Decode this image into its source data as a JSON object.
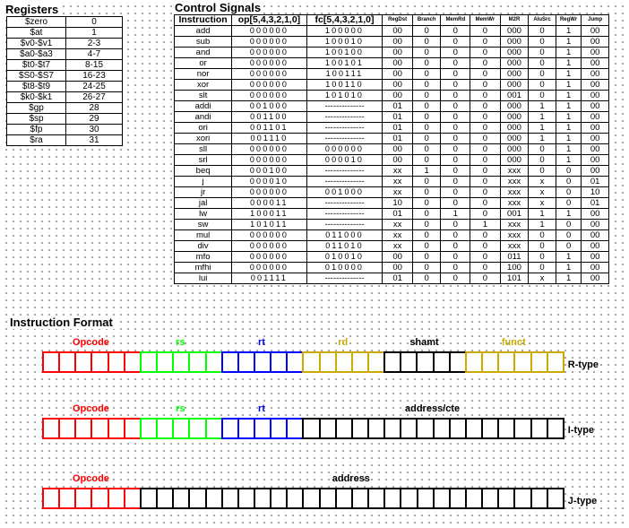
{
  "registers": {
    "title": "Registers",
    "rows": [
      [
        "$zero",
        "0"
      ],
      [
        "$at",
        "1"
      ],
      [
        "$v0-$v1",
        "2-3"
      ],
      [
        "$a0-$a3",
        "4-7"
      ],
      [
        "$t0-$t7",
        "8-15"
      ],
      [
        "$S0-$S7",
        "16-23"
      ],
      [
        "$t8-$t9",
        "24-25"
      ],
      [
        "$k0-$k1",
        "26-27"
      ],
      [
        "$gp",
        "28"
      ],
      [
        "$sp",
        "29"
      ],
      [
        "$fp",
        "30"
      ],
      [
        "$ra",
        "31"
      ]
    ]
  },
  "control_signals": {
    "title": "Control Signals",
    "headers": [
      "Instruction",
      "op[5,4,3,2,1,0]",
      "fc[5,4,3,2,1,0]",
      "RegDst",
      "Branch",
      "MemRd",
      "MemWr",
      "M2R",
      "AluSrc",
      "RegWr",
      "Jump"
    ],
    "rows": [
      [
        "add",
        "000000",
        "100000",
        "00",
        "0",
        "0",
        "0",
        "000",
        "0",
        "1",
        "00"
      ],
      [
        "sub",
        "000000",
        "100010",
        "00",
        "0",
        "0",
        "0",
        "000",
        "0",
        "1",
        "00"
      ],
      [
        "and",
        "000000",
        "100100",
        "00",
        "0",
        "0",
        "0",
        "000",
        "0",
        "1",
        "00"
      ],
      [
        "or",
        "000000",
        "100101",
        "00",
        "0",
        "0",
        "0",
        "000",
        "0",
        "1",
        "00"
      ],
      [
        "nor",
        "000000",
        "100111",
        "00",
        "0",
        "0",
        "0",
        "000",
        "0",
        "1",
        "00"
      ],
      [
        "xor",
        "000000",
        "100110",
        "00",
        "0",
        "0",
        "0",
        "000",
        "0",
        "1",
        "00"
      ],
      [
        "slt",
        "000000",
        "101010",
        "00",
        "0",
        "0",
        "0",
        "001",
        "0",
        "1",
        "00"
      ],
      [
        "addi",
        "001000",
        "--------------",
        "01",
        "0",
        "0",
        "0",
        "000",
        "1",
        "1",
        "00"
      ],
      [
        "andi",
        "001100",
        "--------------",
        "01",
        "0",
        "0",
        "0",
        "000",
        "1",
        "1",
        "00"
      ],
      [
        "ori",
        "001101",
        "--------------",
        "01",
        "0",
        "0",
        "0",
        "000",
        "1",
        "1",
        "00"
      ],
      [
        "xori",
        "001110",
        "--------------",
        "01",
        "0",
        "0",
        "0",
        "000",
        "1",
        "1",
        "00"
      ],
      [
        "sll",
        "000000",
        "000000",
        "00",
        "0",
        "0",
        "0",
        "000",
        "0",
        "1",
        "00"
      ],
      [
        "srl",
        "000000",
        "000010",
        "00",
        "0",
        "0",
        "0",
        "000",
        "0",
        "1",
        "00"
      ],
      [
        "beq",
        "000100",
        "--------------",
        "xx",
        "1",
        "0",
        "0",
        "xxx",
        "0",
        "0",
        "00"
      ],
      [
        "j",
        "000010",
        "--------------",
        "xx",
        "0",
        "0",
        "0",
        "xxx",
        "x",
        "0",
        "01"
      ],
      [
        "jr",
        "000000",
        "001000",
        "xx",
        "0",
        "0",
        "0",
        "xxx",
        "x",
        "0",
        "10"
      ],
      [
        "jal",
        "000011",
        "--------------",
        "10",
        "0",
        "0",
        "0",
        "xxx",
        "x",
        "0",
        "01"
      ],
      [
        "lw",
        "100011",
        "--------------",
        "01",
        "0",
        "1",
        "0",
        "001",
        "1",
        "1",
        "00"
      ],
      [
        "sw",
        "101011",
        "--------------",
        "xx",
        "0",
        "0",
        "1",
        "xxx",
        "1",
        "0",
        "00"
      ],
      [
        "mul",
        "000000",
        "011000",
        "xx",
        "0",
        "0",
        "0",
        "xxx",
        "0",
        "0",
        "00"
      ],
      [
        "div",
        "000000",
        "011010",
        "xx",
        "0",
        "0",
        "0",
        "xxx",
        "0",
        "0",
        "00"
      ],
      [
        "mfo",
        "000000",
        "010010",
        "00",
        "0",
        "0",
        "0",
        "011",
        "0",
        "1",
        "00"
      ],
      [
        "mfhi",
        "000000",
        "010000",
        "00",
        "0",
        "0",
        "0",
        "100",
        "0",
        "1",
        "00"
      ],
      [
        "lui",
        "001111",
        "--------------",
        "01",
        "0",
        "0",
        "0",
        "101",
        "x",
        "1",
        "00"
      ]
    ]
  },
  "instruction_format": {
    "title": "Instruction Format",
    "formats": [
      {
        "type_label": "R-type",
        "fields": [
          {
            "label": "Opcode",
            "bits": 6,
            "color": "#ff0000"
          },
          {
            "label": "rs",
            "bits": 5,
            "color": "#00ff00"
          },
          {
            "label": "rt",
            "bits": 5,
            "color": "#0000ff"
          },
          {
            "label": "rd",
            "bits": 5,
            "color": "#ccaa00"
          },
          {
            "label": "shamt",
            "bits": 5,
            "color": "#000000"
          },
          {
            "label": "funct",
            "bits": 6,
            "color": "#ccaa00"
          }
        ]
      },
      {
        "type_label": "I-type",
        "fields": [
          {
            "label": "Opcode",
            "bits": 6,
            "color": "#ff0000"
          },
          {
            "label": "rs",
            "bits": 5,
            "color": "#00ff00"
          },
          {
            "label": "rt",
            "bits": 5,
            "color": "#0000ff"
          },
          {
            "label": "address/cte",
            "bits": 16,
            "color": "#000000"
          }
        ]
      },
      {
        "type_label": "J-type",
        "fields": [
          {
            "label": "Opcode",
            "bits": 6,
            "color": "#ff0000"
          },
          {
            "label": "address",
            "bits": 26,
            "color": "#000000"
          }
        ]
      }
    ]
  }
}
